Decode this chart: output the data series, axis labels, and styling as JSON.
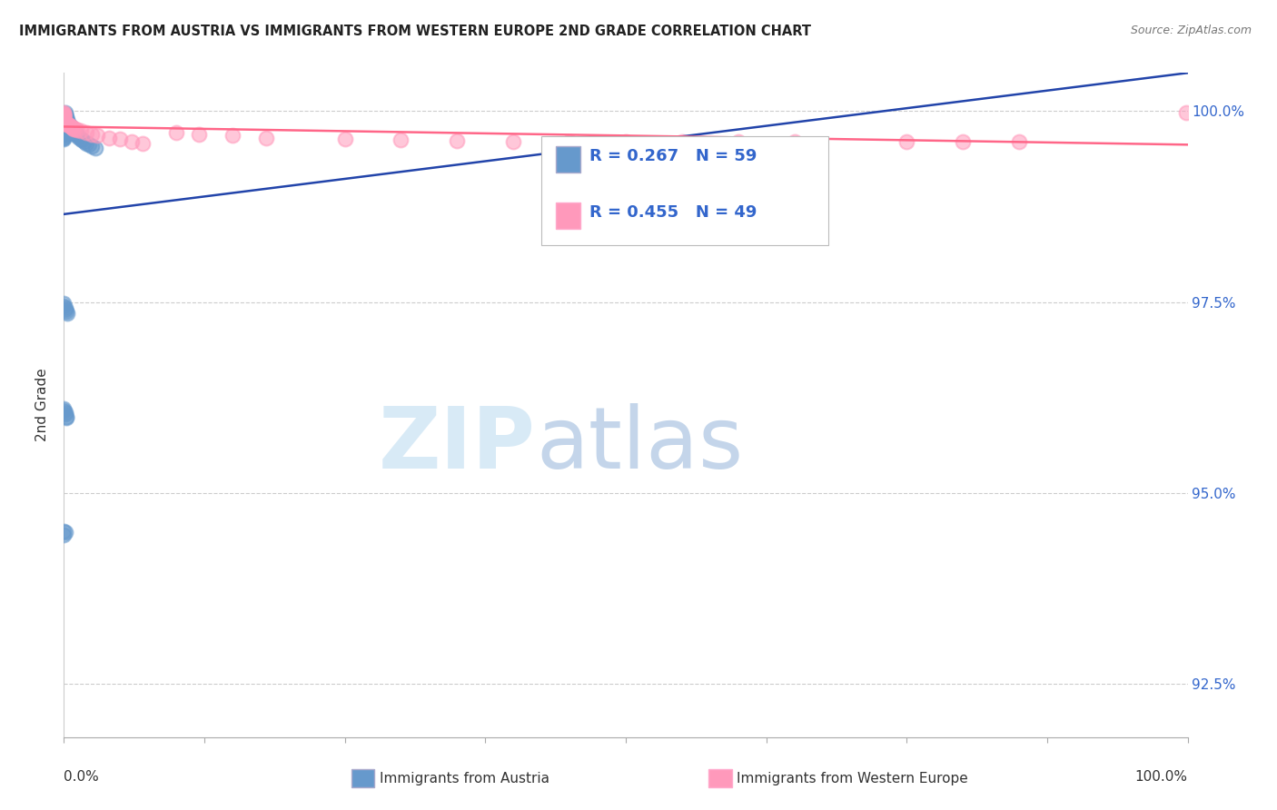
{
  "title": "IMMIGRANTS FROM AUSTRIA VS IMMIGRANTS FROM WESTERN EUROPE 2ND GRADE CORRELATION CHART",
  "source": "Source: ZipAtlas.com",
  "ylabel": "2nd Grade",
  "yaxis_labels": [
    "100.0%",
    "97.5%",
    "95.0%",
    "92.5%"
  ],
  "yaxis_values": [
    1.0,
    0.975,
    0.95,
    0.925
  ],
  "xlim": [
    0.0,
    1.0
  ],
  "ylim": [
    0.918,
    1.005
  ],
  "series1_color": "#6699CC",
  "series2_color": "#FF99BB",
  "series1_line_color": "#2244AA",
  "series2_line_color": "#FF6688",
  "series1_label": "Immigrants from Austria",
  "series2_label": "Immigrants from Western Europe",
  "series1_R": 0.267,
  "series1_N": 59,
  "series2_R": 0.455,
  "series2_N": 49,
  "background_color": "#ffffff",
  "grid_color": "#cccccc",
  "series1_x": [
    0.0,
    0.0,
    0.0,
    0.0,
    0.0,
    0.0,
    0.0,
    0.0,
    0.0,
    0.0,
    0.0,
    0.0,
    0.0,
    0.0,
    0.0,
    0.0,
    0.0,
    0.0,
    0.0,
    0.0,
    0.001,
    0.001,
    0.001,
    0.002,
    0.002,
    0.003,
    0.003,
    0.004,
    0.005,
    0.006,
    0.007,
    0.008,
    0.009,
    0.01,
    0.01,
    0.012,
    0.013,
    0.015,
    0.016,
    0.018,
    0.02,
    0.022,
    0.025,
    0.028,
    0.0,
    0.0,
    0.001,
    0.001,
    0.002,
    0.003,
    0.0,
    0.0,
    0.001,
    0.001,
    0.002,
    0.002,
    0.0,
    0.001,
    0.0
  ],
  "series1_y": [
    0.9995,
    0.9993,
    0.9992,
    0.999,
    0.9988,
    0.9987,
    0.9985,
    0.9984,
    0.9982,
    0.998,
    0.9978,
    0.9977,
    0.9975,
    0.9974,
    0.9972,
    0.997,
    0.9968,
    0.9966,
    0.9965,
    0.9963,
    0.9998,
    0.9996,
    0.9994,
    0.9992,
    0.999,
    0.9988,
    0.9986,
    0.9984,
    0.9982,
    0.998,
    0.9978,
    0.9976,
    0.9974,
    0.9972,
    0.997,
    0.9968,
    0.9966,
    0.9964,
    0.9962,
    0.996,
    0.9958,
    0.9956,
    0.9954,
    0.9952,
    0.9748,
    0.9745,
    0.9742,
    0.974,
    0.9738,
    0.9735,
    0.961,
    0.9608,
    0.9605,
    0.9603,
    0.96,
    0.9598,
    0.945,
    0.9448,
    0.9445
  ],
  "series2_x": [
    0.0,
    0.0,
    0.0,
    0.0,
    0.0,
    0.0,
    0.0,
    0.0,
    0.0,
    0.0,
    0.0,
    0.0,
    0.0,
    0.0,
    0.0,
    0.003,
    0.004,
    0.005,
    0.006,
    0.007,
    0.008,
    0.009,
    0.01,
    0.012,
    0.015,
    0.02,
    0.025,
    0.03,
    0.04,
    0.05,
    0.06,
    0.07,
    0.1,
    0.12,
    0.15,
    0.18,
    0.25,
    0.3,
    0.35,
    0.4,
    0.45,
    0.5,
    0.55,
    0.6,
    0.65,
    0.75,
    0.8,
    0.85,
    0.999
  ],
  "series2_y": [
    0.9998,
    0.9997,
    0.9996,
    0.9995,
    0.9994,
    0.9993,
    0.9992,
    0.9991,
    0.999,
    0.9989,
    0.9988,
    0.9987,
    0.9986,
    0.9985,
    0.9984,
    0.9983,
    0.9982,
    0.9981,
    0.998,
    0.9979,
    0.9978,
    0.9977,
    0.9976,
    0.9975,
    0.9974,
    0.9972,
    0.997,
    0.9968,
    0.9965,
    0.9963,
    0.996,
    0.9958,
    0.9972,
    0.997,
    0.9968,
    0.9965,
    0.9963,
    0.9962,
    0.9961,
    0.996,
    0.996,
    0.996,
    0.996,
    0.996,
    0.996,
    0.996,
    0.996,
    0.996,
    0.9998
  ]
}
